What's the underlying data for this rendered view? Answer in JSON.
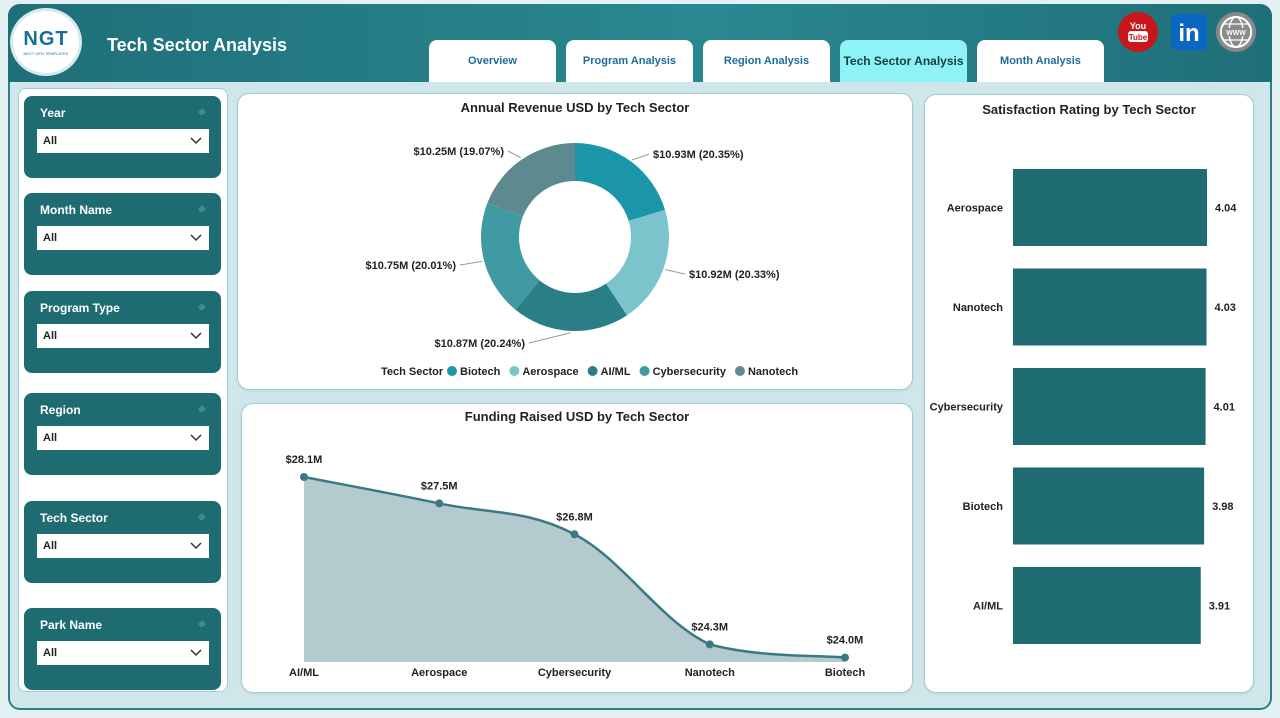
{
  "header": {
    "logo_text": "NGT",
    "logo_sub": "NEXT GEN TEMPLATES",
    "title": "Tech Sector Analysis",
    "tabs": [
      {
        "label": "Overview",
        "active": false
      },
      {
        "label": "Program Analysis",
        "active": false
      },
      {
        "label": "Region Analysis",
        "active": false
      },
      {
        "label": "Tech Sector Analysis",
        "active": true
      },
      {
        "label": "Month Analysis",
        "active": false
      }
    ],
    "social": [
      {
        "icon": "youtube-icon",
        "text": "You Tube"
      },
      {
        "icon": "linkedin-icon",
        "text": "in"
      },
      {
        "icon": "globe-icon",
        "text": "WWW"
      }
    ]
  },
  "filters": [
    {
      "label": "Year",
      "value": "All"
    },
    {
      "label": "Month Name",
      "value": "All"
    },
    {
      "label": "Program Type",
      "value": "All"
    },
    {
      "label": "Region",
      "value": "All"
    },
    {
      "label": "Tech Sector",
      "value": "All"
    },
    {
      "label": "Park Name",
      "value": "All"
    }
  ],
  "colors": {
    "teal_dark": "#1f6b72",
    "biotech": "#1b95a8",
    "aerospace": "#7cc4cc",
    "aiml": "#2a7f87",
    "cybersecurity": "#3f9aa3",
    "nanotech": "#5e8a8f",
    "area_fill": "#b3cbcf",
    "area_line": "#3b7a82"
  },
  "chart_data": [
    {
      "type": "pie",
      "title": "Annual Revenue USD by Tech Sector",
      "legend_title": "Tech Sector",
      "legend_position": "bottom",
      "slices": [
        {
          "name": "Biotech",
          "value": 10.93,
          "label": "$10.93M (20.35%)",
          "color": "#1b95a8"
        },
        {
          "name": "Aerospace",
          "value": 10.92,
          "label": "$10.92M (20.33%)",
          "color": "#7cc4cc"
        },
        {
          "name": "AI/ML",
          "value": 10.87,
          "label": "$10.87M (20.24%)",
          "color": "#2a7f87"
        },
        {
          "name": "Cybersecurity",
          "value": 10.75,
          "label": "$10.75M (20.01%)",
          "color": "#3f9aa3"
        },
        {
          "name": "Nanotech",
          "value": 10.25,
          "label": "$10.25M (19.07%)",
          "color": "#5e8a8f"
        }
      ]
    },
    {
      "type": "area",
      "title": "Funding Raised USD by Tech Sector",
      "categories": [
        "AI/ML",
        "Aerospace",
        "Cybersecurity",
        "Nanotech",
        "Biotech"
      ],
      "values": [
        28.1,
        27.5,
        26.8,
        24.3,
        24.0
      ],
      "data_labels": [
        "$28.1M",
        "$27.5M",
        "$26.8M",
        "$24.3M",
        "$24.0M"
      ],
      "ylim": [
        23.9,
        28.1
      ]
    },
    {
      "type": "bar",
      "title": "Satisfaction Rating by Tech Sector",
      "orientation": "horizontal",
      "categories": [
        "Aerospace",
        "Nanotech",
        "Cybersecurity",
        "Biotech",
        "AI/ML"
      ],
      "values": [
        4.04,
        4.03,
        4.01,
        3.98,
        3.91
      ],
      "data_labels": [
        "4.04",
        "4.03",
        "4.01",
        "3.98",
        "3.91"
      ]
    }
  ]
}
